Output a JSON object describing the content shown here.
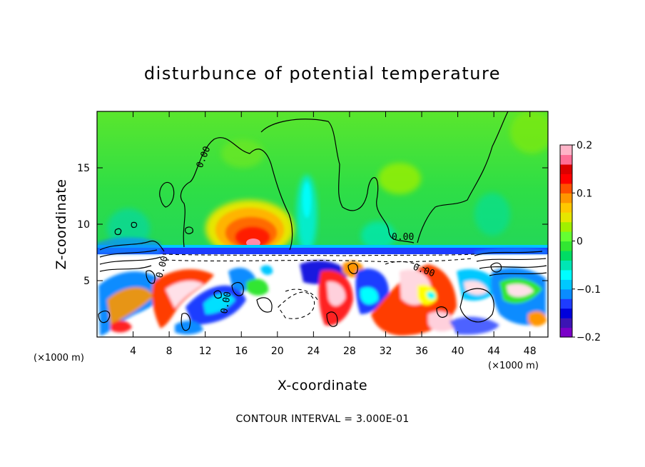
{
  "chart_data": {
    "type": "heatmap",
    "title": "disturbunce of potential temperature",
    "xlabel": "X-coordinate",
    "ylabel": "Z-coordinate",
    "x_unit": "(×1000 m)",
    "y_unit": "(×1000 m)",
    "xlim": [
      0,
      50
    ],
    "ylim": [
      0,
      20
    ],
    "x_ticks": [
      4,
      8,
      12,
      16,
      20,
      24,
      28,
      32,
      36,
      40,
      44,
      48
    ],
    "y_ticks": [
      5,
      10,
      15
    ],
    "colorbar": {
      "min": -0.2,
      "max": 0.2,
      "ticks": [
        -0.2,
        -0.1,
        0,
        0.1,
        0.2
      ],
      "tick_labels": [
        "−0.2",
        "−0.1",
        "0",
        "0.1",
        "0.2"
      ],
      "colors": [
        "#7a00c8",
        "#3c14b4",
        "#0000dc",
        "#1e3cff",
        "#0a8cff",
        "#00c8ff",
        "#00ffff",
        "#00e6b4",
        "#00dc64",
        "#32e632",
        "#64ff32",
        "#a0f000",
        "#e6e600",
        "#ffc800",
        "#ff9600",
        "#ff5000",
        "#ff0000",
        "#dc0000",
        "#ff6e96",
        "#ffb4c8"
      ]
    },
    "contour_labels": [
      "0.00",
      "0.00",
      "0.00",
      "0.00",
      "0.00"
    ],
    "contour_interval_text": "CONTOUR INTERVAL = 3.000E-01",
    "features": {
      "warm_core_center": [
        17,
        9
      ],
      "warm_core_value": 0.15,
      "inversion_height": 7.6,
      "upper_background": 0.02
    }
  }
}
